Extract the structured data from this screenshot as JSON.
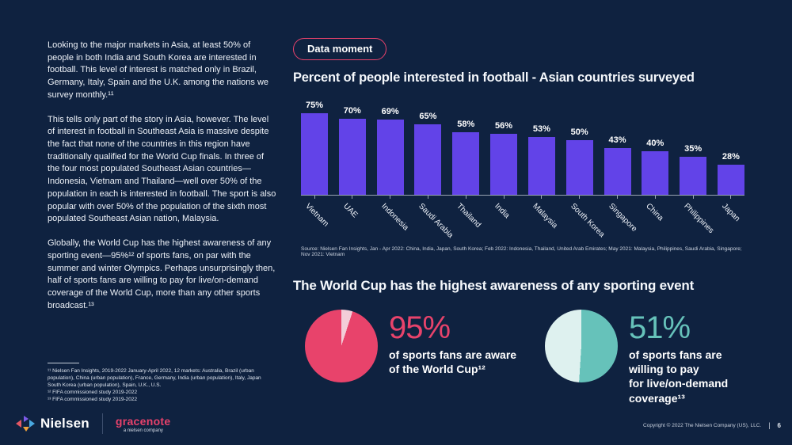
{
  "theme": {
    "background": "#0f2240",
    "text_primary": "#f2f5fa",
    "accent_pink": "#e8426b",
    "bar_purple": "#6243e8",
    "teal": "#66c2ba",
    "pale_pink": "#f3cdd8",
    "pale_teal": "#def1ef",
    "axis": "#9aa5b4"
  },
  "left_column": {
    "paragraphs": [
      "Looking to the major markets in Asia, at least 50% of people in both India and South Korea are interested in football. This level of interest is matched only in Brazil, Germany, Italy, Spain and the U.K. among the nations we survey monthly.¹¹",
      "This tells only part of the story in Asia, however. The level of interest in football in Southeast Asia is massive despite the fact that none of the countries in this region have traditionally qualified for the World Cup finals. In three of the four most populated Southeast Asian countries—Indonesia, Vietnam and Thailand—well over 50% of the population in each is interested in football. The sport is also popular with over 50% of the population of the sixth most populated Southeast Asian nation, Malaysia.",
      "Globally, the World Cup has the highest awareness of any sporting event—95%¹² of sports fans, on par with the summer and winter Olympics. Perhaps unsurprisingly then, half of sports fans are willing to pay for live/on-demand coverage of the World Cup, more than any other sports broadcast.¹³"
    ],
    "footnotes": [
      "¹¹ Nielsen Fan Insights, 2019-2022 January-April 2022, 12 markets: Australia, Brazil (urban population), China (urban population), France, Germany, India (urban population), Italy, Japan South Korea (urban population), Spain, U.K., U.S.",
      "¹² FIFA commissioned study 2019-2022",
      "¹³ FIFA commissioned study 2019-2022"
    ]
  },
  "badge": {
    "label": "Data moment"
  },
  "awareness": {
    "heading": "The World Cup has the highest awareness of any sporting event"
  },
  "chart_data": [
    {
      "type": "bar",
      "title": "Percent of people interested in football - Asian countries surveyed",
      "categories": [
        "Vietnam",
        "UAE",
        "Indonesia",
        "Saudi Arabia",
        "Thailand",
        "India",
        "Malaysia",
        "South Korea",
        "Singapore",
        "China",
        "Philippines",
        "Japan"
      ],
      "values": [
        75,
        70,
        69,
        65,
        58,
        56,
        53,
        50,
        43,
        40,
        35,
        28
      ],
      "unit": "%",
      "ylim": [
        0,
        80
      ],
      "grid": false,
      "bar_color": "#6243e8",
      "source": "Source: Nielsen Fan Insights, Jan - Apr 2022: China, India, Japan, South Korea; Feb 2022: Indonesia, Thailand, United Arab Emirates; May 2021: Malaysia, Philippines, Saudi Arabia, Singapore; Nov 2021: Vietnam"
    },
    {
      "type": "pie",
      "values": [
        95,
        5
      ],
      "pct_label": "95%",
      "lines": [
        "of sports fans are aware",
        "of the World Cup¹²"
      ],
      "main_color": "#e8436b",
      "rest_color": "#f3cdd8",
      "rest_first": true
    },
    {
      "type": "pie",
      "values": [
        51,
        49
      ],
      "pct_label": "51%",
      "lines": [
        "of sports fans are willing to pay",
        "for live/on-demand coverage¹³"
      ],
      "main_color": "#66c2ba",
      "rest_color": "#def1ef",
      "rest_first": false
    }
  ],
  "footer": {
    "nielsen": "Nielsen",
    "gracenote": "gracenote",
    "gracenote_sub": "a nielsen company",
    "copyright": "Copyright © 2022 The Nielsen Company (US), LLC.",
    "separator": "|",
    "page_number": "6"
  }
}
